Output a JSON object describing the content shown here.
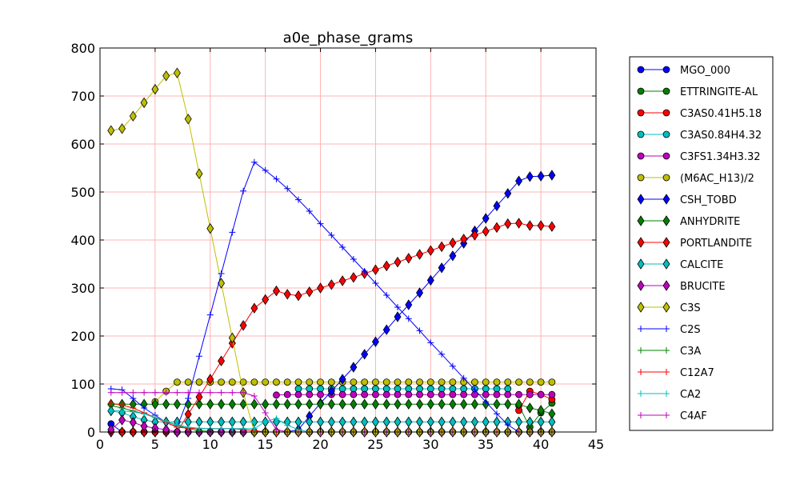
{
  "chart_data": {
    "type": "line",
    "title": "a0e_phase_grams",
    "xlabel": "",
    "ylabel": "",
    "xlim": [
      0,
      45
    ],
    "ylim": [
      0,
      800
    ],
    "xticks": [
      0,
      5,
      10,
      15,
      20,
      25,
      30,
      35,
      40,
      45
    ],
    "yticks": [
      0,
      100,
      200,
      300,
      400,
      500,
      600,
      700,
      800
    ],
    "grid": true,
    "grid_color": "#ffb3b3",
    "legend_position": "right, outside plot area",
    "series": [
      {
        "name": "MGO_000",
        "color": "#0000ff",
        "marker": "circle",
        "x": [
          1,
          2,
          3,
          4,
          5,
          6,
          7,
          8,
          9,
          10,
          11,
          12,
          13,
          14,
          15,
          16,
          17,
          18,
          19,
          20,
          21,
          22,
          23,
          24,
          25,
          26,
          27,
          28,
          29,
          30,
          31,
          32,
          33,
          34,
          35,
          36,
          37,
          38,
          39,
          40,
          41
        ],
        "values": [
          17,
          0,
          0,
          0,
          0,
          0,
          0,
          0,
          0,
          0,
          0,
          0,
          0,
          0,
          0,
          0,
          0,
          0,
          0,
          0,
          0,
          0,
          0,
          0,
          0,
          0,
          0,
          0,
          0,
          0,
          0,
          0,
          0,
          0,
          0,
          0,
          0,
          0,
          0,
          0,
          0
        ]
      },
      {
        "name": "ETTRINGITE-AL",
        "color": "#008000",
        "marker": "circle",
        "x": [
          38,
          39,
          40,
          41
        ],
        "values": [
          55,
          10,
          40,
          60
        ]
      },
      {
        "name": "C3AS0.41H5.18",
        "color": "#ff0000",
        "marker": "circle",
        "x": [
          38,
          39,
          40,
          41
        ],
        "values": [
          45,
          85,
          78,
          68
        ]
      },
      {
        "name": "C3AS0.84H4.32",
        "color": "#00bfbf",
        "marker": "circle",
        "x": [
          18,
          19,
          20,
          21,
          22,
          23,
          24,
          25,
          26,
          27,
          28,
          29,
          30,
          31,
          32,
          33,
          34,
          35,
          36,
          37
        ],
        "values": [
          90,
          90,
          90,
          90,
          90,
          90,
          90,
          90,
          90,
          90,
          90,
          90,
          90,
          90,
          90,
          90,
          90,
          90,
          90,
          90
        ]
      },
      {
        "name": "C3FS1.34H3.32",
        "color": "#bf00bf",
        "marker": "circle",
        "x": [
          16,
          17,
          18,
          19,
          20,
          21,
          22,
          23,
          24,
          25,
          26,
          27,
          28,
          29,
          30,
          31,
          32,
          33,
          34,
          35,
          36,
          37,
          38,
          39,
          40,
          41
        ],
        "values": [
          77,
          78,
          78,
          78,
          78,
          78,
          78,
          78,
          78,
          78,
          78,
          78,
          78,
          78,
          78,
          78,
          78,
          78,
          78,
          78,
          78,
          78,
          78,
          78,
          78,
          78
        ]
      },
      {
        "name": "(M6AC_H13)/2",
        "color": "#bfbf00",
        "marker": "circle",
        "x": [
          5,
          6,
          7,
          8,
          9,
          10,
          11,
          12,
          13,
          14,
          15,
          16,
          17,
          18,
          19,
          20,
          21,
          22,
          23,
          24,
          25,
          26,
          27,
          28,
          29,
          30,
          31,
          32,
          33,
          34,
          35,
          36,
          37,
          38,
          39,
          40,
          41
        ],
        "values": [
          63,
          85,
          104,
          104,
          104,
          104,
          104,
          104,
          104,
          104,
          104,
          104,
          104,
          104,
          104,
          104,
          104,
          104,
          104,
          104,
          104,
          104,
          104,
          104,
          104,
          104,
          104,
          104,
          104,
          104,
          104,
          104,
          104,
          104,
          104,
          104,
          104
        ]
      },
      {
        "name": "CSH_TOBD",
        "color": "#0000ff",
        "marker": "diamond",
        "x": [
          1,
          2,
          3,
          4,
          5,
          6,
          7,
          8,
          9,
          10,
          11,
          12,
          13,
          14,
          15,
          16,
          17,
          18,
          19,
          20,
          21,
          22,
          23,
          24,
          25,
          26,
          27,
          28,
          29,
          30,
          31,
          32,
          33,
          34,
          35,
          36,
          37,
          38,
          39,
          40,
          41
        ],
        "values": [
          0,
          0,
          0,
          0,
          0,
          0,
          0,
          0,
          0,
          0,
          0,
          0,
          0,
          0,
          0,
          0,
          0,
          5,
          33,
          60,
          85,
          110,
          135,
          162,
          188,
          213,
          240,
          265,
          290,
          316,
          342,
          367,
          393,
          419,
          445,
          471,
          497,
          523,
          532,
          533,
          535
        ]
      },
      {
        "name": "ANHYDRITE",
        "color": "#008000",
        "marker": "diamond",
        "x": [
          1,
          2,
          3,
          4,
          5,
          6,
          7,
          8,
          9,
          10,
          11,
          12,
          13,
          14,
          15,
          16,
          17,
          18,
          19,
          20,
          21,
          22,
          23,
          24,
          25,
          26,
          27,
          28,
          29,
          30,
          31,
          32,
          33,
          34,
          35,
          36,
          37,
          38,
          39,
          40,
          41
        ],
        "values": [
          58,
          58,
          58,
          58,
          58,
          58,
          58,
          58,
          58,
          58,
          58,
          58,
          58,
          58,
          58,
          58,
          58,
          58,
          58,
          58,
          58,
          58,
          58,
          58,
          58,
          58,
          58,
          58,
          58,
          58,
          58,
          58,
          58,
          58,
          58,
          58,
          58,
          58,
          50,
          45,
          38
        ]
      },
      {
        "name": "PORTLANDITE",
        "color": "#ff0000",
        "marker": "diamond",
        "x": [
          1,
          2,
          3,
          4,
          5,
          6,
          7,
          8,
          9,
          10,
          11,
          12,
          13,
          14,
          15,
          16,
          17,
          18,
          19,
          20,
          21,
          22,
          23,
          24,
          25,
          26,
          27,
          28,
          29,
          30,
          31,
          32,
          33,
          34,
          35,
          36,
          37,
          38,
          39,
          40,
          41
        ],
        "values": [
          0,
          0,
          0,
          0,
          0,
          0,
          0,
          37,
          73,
          110,
          148,
          185,
          222,
          258,
          276,
          294,
          287,
          284,
          292,
          300,
          307,
          315,
          322,
          330,
          338,
          346,
          354,
          362,
          370,
          378,
          386,
          394,
          402,
          410,
          418,
          426,
          434,
          435,
          430,
          430,
          428
        ]
      },
      {
        "name": "CALCITE",
        "color": "#00bfbf",
        "marker": "diamond",
        "x": [
          1,
          2,
          3,
          4,
          5,
          6,
          7,
          8,
          9,
          10,
          11,
          12,
          13,
          14,
          15,
          16,
          17,
          18,
          19,
          20,
          21,
          22,
          23,
          24,
          25,
          26,
          27,
          28,
          29,
          30,
          31,
          32,
          33,
          34,
          35,
          36,
          37,
          38,
          39,
          40,
          41
        ],
        "values": [
          44,
          40,
          32,
          25,
          21,
          21,
          21,
          21,
          21,
          21,
          21,
          21,
          21,
          21,
          21,
          21,
          21,
          21,
          21,
          21,
          21,
          21,
          21,
          21,
          21,
          21,
          21,
          21,
          21,
          21,
          21,
          21,
          21,
          21,
          21,
          21,
          21,
          21,
          21,
          21,
          21
        ]
      },
      {
        "name": "BRUCITE",
        "color": "#bf00bf",
        "marker": "diamond",
        "x": [
          1,
          2,
          3,
          4,
          5,
          6,
          7,
          8,
          9,
          10,
          11,
          12,
          13,
          14,
          15,
          16,
          17,
          18,
          19,
          20,
          21,
          22,
          23,
          24,
          25,
          26,
          27,
          28,
          29,
          30,
          31,
          32,
          33,
          34,
          35,
          36,
          37,
          38,
          39,
          40,
          41
        ],
        "values": [
          5,
          25,
          20,
          12,
          8,
          5,
          0,
          0,
          0,
          0,
          0,
          0,
          0,
          0,
          0,
          0,
          0,
          0,
          0,
          0,
          0,
          0,
          0,
          0,
          0,
          0,
          0,
          0,
          0,
          0,
          0,
          0,
          0,
          0,
          0,
          0,
          0,
          0,
          0,
          0,
          0
        ]
      },
      {
        "name": "C3S",
        "color": "#bfbf00",
        "marker": "diamond",
        "x": [
          1,
          2,
          3,
          4,
          5,
          6,
          7,
          8,
          9,
          10,
          11,
          12,
          13,
          14,
          15,
          16,
          17,
          18,
          19,
          20,
          21,
          22,
          23,
          24,
          25,
          26,
          27,
          28,
          29,
          30,
          31,
          32,
          33,
          34,
          35,
          36,
          37,
          38,
          39,
          40,
          41
        ],
        "values": [
          628,
          632,
          658,
          686,
          714,
          742,
          748,
          652,
          538,
          424,
          310,
          196,
          82,
          0,
          0,
          0,
          0,
          0,
          0,
          0,
          0,
          0,
          0,
          0,
          0,
          0,
          0,
          0,
          0,
          0,
          0,
          0,
          0,
          0,
          0,
          0,
          0,
          0,
          0,
          0,
          0
        ]
      },
      {
        "name": "C2S",
        "color": "#0000ff",
        "marker": "plus",
        "x": [
          1,
          2,
          3,
          4,
          5,
          6,
          7,
          8,
          9,
          10,
          11,
          12,
          13,
          14,
          15,
          16,
          17,
          18,
          19,
          20,
          21,
          22,
          23,
          24,
          25,
          26,
          27,
          28,
          29,
          30,
          31,
          32,
          33,
          34,
          35,
          36,
          37,
          38,
          39,
          40,
          41
        ],
        "values": [
          90,
          88,
          70,
          50,
          35,
          20,
          10,
          70,
          158,
          244,
          330,
          416,
          502,
          562,
          545,
          527,
          507,
          484,
          460,
          434,
          410,
          385,
          360,
          335,
          310,
          285,
          260,
          236,
          211,
          186,
          162,
          137,
          112,
          88,
          63,
          38,
          15,
          0,
          0,
          0,
          0
        ]
      },
      {
        "name": "C3A",
        "color": "#008000",
        "marker": "plus",
        "x": [
          1,
          2,
          3,
          4,
          5,
          6,
          7,
          8,
          9,
          10,
          11,
          12,
          13,
          14,
          15,
          16,
          17,
          18,
          19,
          20,
          21,
          22,
          23,
          24,
          25,
          26,
          27,
          28,
          29,
          30,
          31,
          32,
          33,
          34,
          35,
          36,
          37,
          38,
          39,
          40,
          41
        ],
        "values": [
          55,
          50,
          44,
          38,
          30,
          22,
          14,
          7,
          3,
          1,
          0,
          0,
          0,
          0,
          0,
          0,
          0,
          0,
          0,
          0,
          0,
          0,
          0,
          0,
          0,
          0,
          0,
          0,
          0,
          0,
          0,
          0,
          0,
          0,
          0,
          0,
          0,
          0,
          0,
          0,
          0
        ]
      },
      {
        "name": "C12A7",
        "color": "#ff0000",
        "marker": "plus",
        "x": [
          1,
          2,
          3,
          4,
          5,
          6,
          7,
          8,
          9,
          10,
          11,
          12,
          13,
          14,
          15,
          16,
          17,
          18,
          19,
          20,
          21,
          22,
          23,
          24,
          25,
          26,
          27,
          28,
          29,
          30,
          31,
          32,
          33,
          34,
          35,
          36,
          37,
          38,
          39,
          40,
          41
        ],
        "values": [
          60,
          56,
          50,
          40,
          30,
          20,
          10,
          8,
          7,
          7,
          7,
          7,
          5,
          3,
          0,
          0,
          0,
          0,
          0,
          0,
          0,
          0,
          0,
          0,
          0,
          0,
          0,
          0,
          0,
          0,
          0,
          0,
          0,
          0,
          0,
          0,
          0,
          0,
          0,
          0,
          0
        ]
      },
      {
        "name": "CA2",
        "color": "#00bfbf",
        "marker": "plus",
        "x": [
          1,
          2,
          3,
          4,
          5,
          6,
          7,
          8,
          9,
          10,
          11,
          12,
          13,
          14,
          15,
          16,
          17,
          18,
          19,
          20,
          21,
          22,
          23,
          24,
          25,
          26,
          27,
          28,
          29,
          30,
          31,
          32,
          33,
          34,
          35,
          36,
          37,
          38,
          39,
          40,
          41
        ],
        "values": [
          45,
          44,
          42,
          38,
          30,
          22,
          15,
          10,
          8,
          7,
          7,
          7,
          7,
          7,
          22,
          28,
          14,
          5,
          0,
          0,
          0,
          0,
          0,
          0,
          0,
          0,
          0,
          0,
          0,
          0,
          0,
          0,
          0,
          0,
          0,
          0,
          0,
          0,
          0,
          0,
          0
        ]
      },
      {
        "name": "C4AF",
        "color": "#bf00bf",
        "marker": "plus",
        "x": [
          1,
          2,
          3,
          4,
          5,
          6,
          7,
          8,
          9,
          10,
          11,
          12,
          13,
          14,
          15,
          16,
          17,
          18,
          19,
          20,
          21,
          22,
          23,
          24,
          25,
          26,
          27,
          28,
          29,
          30,
          31,
          32,
          33,
          34,
          35,
          36,
          37,
          38,
          39,
          40,
          41
        ],
        "values": [
          82,
          82,
          82,
          82,
          82,
          82,
          82,
          82,
          82,
          82,
          82,
          82,
          82,
          75,
          40,
          5,
          0,
          0,
          0,
          0,
          0,
          0,
          0,
          0,
          0,
          0,
          0,
          0,
          0,
          0,
          0,
          0,
          0,
          0,
          0,
          0,
          0,
          0,
          0,
          0,
          0
        ]
      }
    ]
  }
}
